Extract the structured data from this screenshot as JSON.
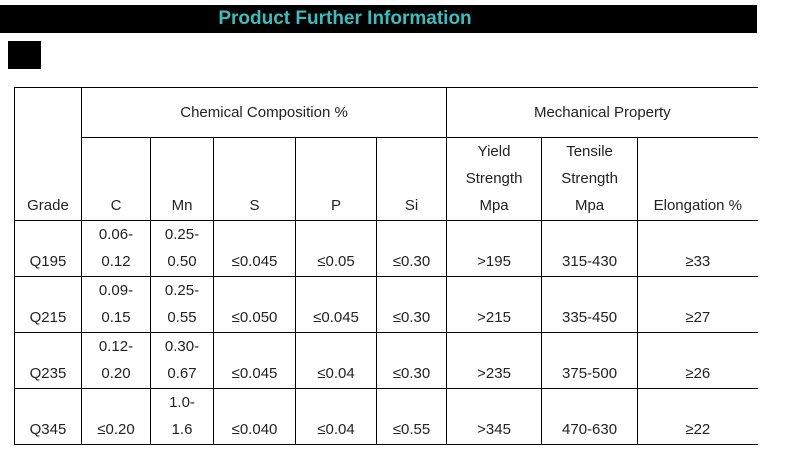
{
  "title": "Product Further Information",
  "table": {
    "grade": "Grade",
    "groups": [
      "Chemical Composition  %",
      "Mechanical Property"
    ],
    "columns": [
      "C",
      "Mn",
      "S",
      "P",
      "Si",
      "Yield\nStrength\nMpa",
      "Tensile\nStrength\nMpa",
      "Elongation %"
    ],
    "rows": [
      [
        "Q195",
        "0.06-\n0.12",
        "0.25-\n0.50",
        "≤0.045",
        "≤0.05",
        "≤0.30",
        ">195",
        "315-430",
        "≥33"
      ],
      [
        "Q215",
        "0.09-\n0.15",
        "0.25-\n0.55",
        "≤0.050",
        "≤0.045",
        "≤0.30",
        ">215",
        "335-450",
        "≥27"
      ],
      [
        "Q235",
        "0.12-\n0.20",
        "0.30-\n0.67",
        "≤0.045",
        "≤0.04",
        "≤0.30",
        ">235",
        "375-500",
        "≥26"
      ],
      [
        "Q345",
        "≤0.20",
        "1.0-\n1.6",
        "≤0.040",
        "≤0.04",
        "≤0.55",
        ">345",
        "470-630",
        "≥22"
      ]
    ]
  }
}
